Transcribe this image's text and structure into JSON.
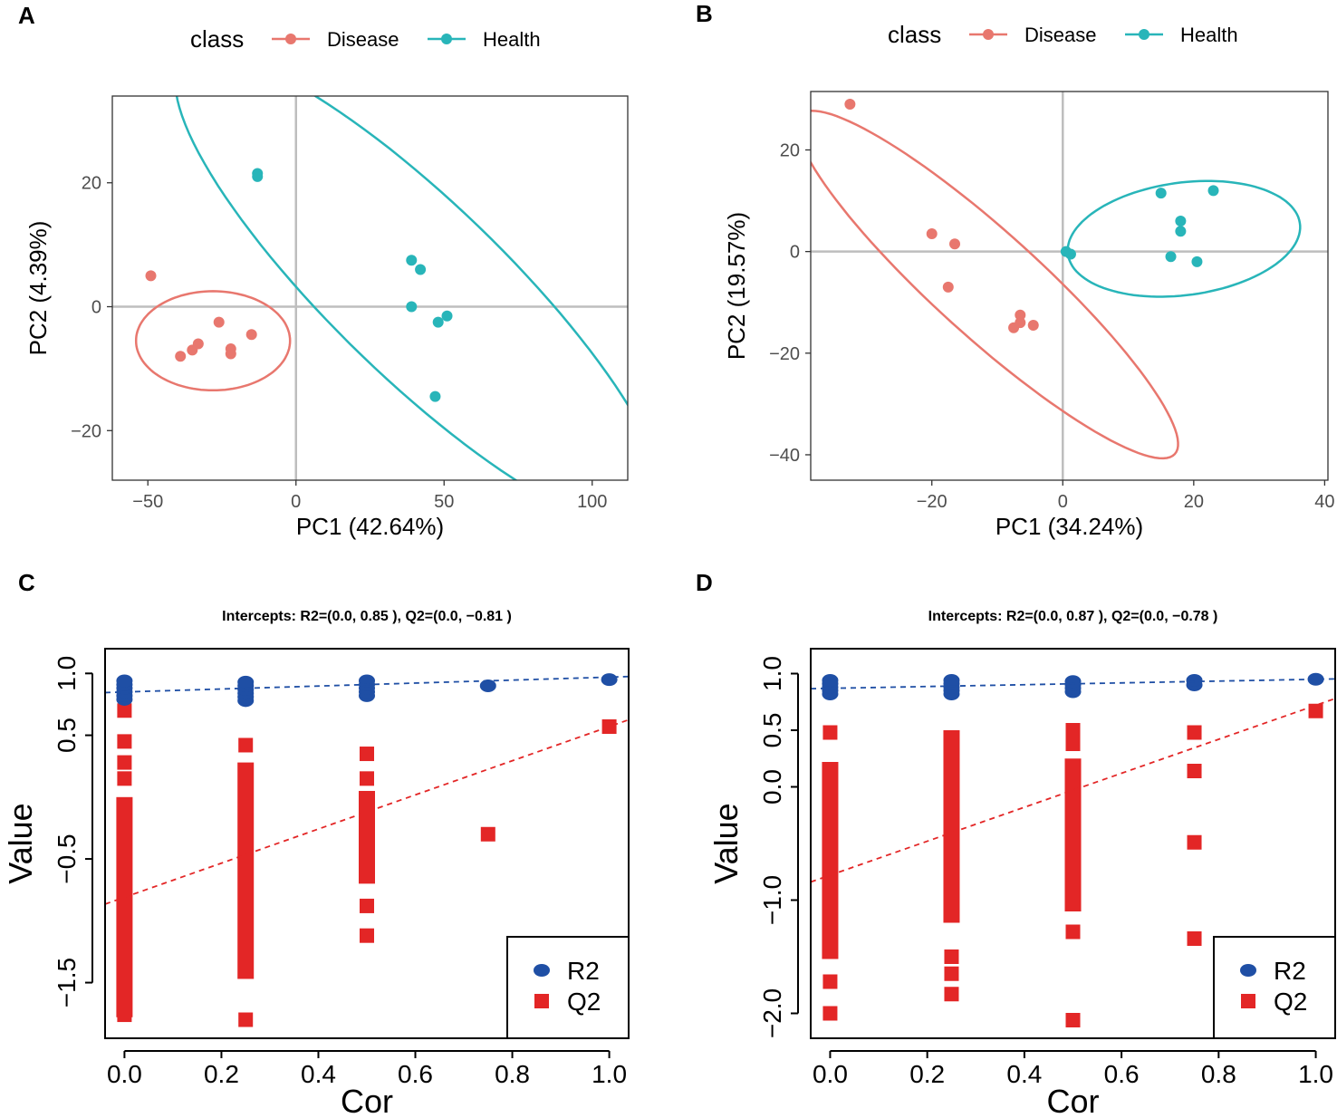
{
  "colors": {
    "disease": "#E8776E",
    "health": "#28B5B9",
    "r2": "#1F4FA5",
    "q2": "#E32626",
    "refline": "#BEBEBE",
    "frame": "#333333"
  },
  "chart_data": [
    {
      "panel": "A",
      "type": "scatter",
      "legend_title": "class",
      "legend_position": "top",
      "xlabel": "PC1 (42.64%)",
      "ylabel": "PC2 (4.39%)",
      "xlim": [
        -62,
        112
      ],
      "ylim": [
        -28,
        34
      ],
      "xticks": [
        -50,
        0,
        50,
        100
      ],
      "yticks": [
        -20,
        0,
        20
      ],
      "xtick_labels": [
        "−50",
        "0",
        "50",
        "100"
      ],
      "ytick_labels": [
        "−20",
        "0",
        "20"
      ],
      "series": [
        {
          "name": "Disease",
          "color_key": "disease",
          "points": [
            [
              -49,
              5
            ],
            [
              -39,
              -8
            ],
            [
              -35,
              -7
            ],
            [
              -33,
              -6
            ],
            [
              -26,
              -2.5
            ],
            [
              -22,
              -6.8
            ],
            [
              -22,
              -7.6
            ],
            [
              -15,
              -4.5
            ]
          ],
          "ellipse": {
            "center": [
              -28,
              -5.5
            ],
            "semi_axes": [
              26,
              8
            ],
            "angle_deg": 0
          }
        },
        {
          "name": "Health",
          "color_key": "health",
          "points": [
            [
              -13,
              21.5
            ],
            [
              -13,
              21
            ],
            [
              39,
              7.5
            ],
            [
              42,
              6
            ],
            [
              39,
              0
            ],
            [
              51,
              -1.5
            ],
            [
              48,
              -2.5
            ],
            [
              47,
              -14.5
            ]
          ],
          "ellipse": {
            "center": [
              42,
              2.5
            ],
            "semi_axes": [
              89.5,
              17.5
            ],
            "angle_deg": -23
          }
        }
      ]
    },
    {
      "panel": "B",
      "type": "scatter",
      "legend_title": "class",
      "legend_position": "top",
      "xlabel": "PC1 (34.24%)",
      "ylabel": "PC2 (19.57%)",
      "xlim": [
        -38.5,
        40.5
      ],
      "ylim": [
        -45,
        31.5
      ],
      "xticks": [
        -20,
        0,
        20,
        40
      ],
      "yticks": [
        -40,
        -20,
        0,
        20
      ],
      "xtick_labels": [
        "−20",
        "0",
        "20",
        "40"
      ],
      "ytick_labels": [
        "−40",
        "−20",
        "0",
        "20"
      ],
      "series": [
        {
          "name": "Disease",
          "color_key": "disease",
          "points": [
            [
              -32.5,
              29
            ],
            [
              -20,
              3.5
            ],
            [
              -16.5,
              1.5
            ],
            [
              -17.5,
              -7
            ],
            [
              -6.5,
              -12.5
            ],
            [
              -6.5,
              -14
            ],
            [
              -7.5,
              -15
            ],
            [
              -4.5,
              -14.5
            ]
          ],
          "ellipse": {
            "center": [
              -11.5,
              -6.5
            ],
            "semi_axes": [
              44,
              9
            ],
            "angle_deg": -50
          }
        },
        {
          "name": "Health",
          "color_key": "health",
          "points": [
            [
              0.5,
              0
            ],
            [
              1.2,
              -0.5
            ],
            [
              15,
              11.5
            ],
            [
              23,
              12
            ],
            [
              18,
              6
            ],
            [
              18,
              4
            ],
            [
              16.5,
              -1
            ],
            [
              20.5,
              -2
            ]
          ],
          "ellipse": {
            "center": [
              18.5,
              2.5
            ],
            "semi_axes": [
              18,
              11
            ],
            "angle_deg": 12
          }
        }
      ]
    },
    {
      "panel": "C",
      "type": "scatter",
      "title": "Intercepts: R2=(0.0, 0.85 ), Q2=(0.0, −0.81 )",
      "xlabel": "Cor",
      "ylabel": "Value",
      "xlim": [
        -0.04,
        1.04
      ],
      "ylim": [
        -1.95,
        1.2
      ],
      "xticks": [
        0.0,
        0.2,
        0.4,
        0.6,
        0.8,
        1.0
      ],
      "yticks": [
        -1.5,
        -0.5,
        0.5,
        1.0
      ],
      "xtick_labels": [
        "0.0",
        "0.2",
        "0.4",
        "0.6",
        "0.8",
        "1.0"
      ],
      "ytick_labels": [
        "−1.5",
        "−0.5",
        "0.5",
        "1.0"
      ],
      "legend": [
        "R2",
        "Q2"
      ],
      "legend_position": "bottom-right",
      "r2_line": {
        "intercept": 0.85,
        "slope": 0.12
      },
      "q2_line": {
        "intercept": -0.81,
        "slope": 1.38
      },
      "r2_points": [
        [
          0,
          0.79
        ],
        [
          0,
          0.82
        ],
        [
          0,
          0.85
        ],
        [
          0,
          0.88
        ],
        [
          0,
          0.91
        ],
        [
          0,
          0.94
        ],
        [
          0.25,
          0.78
        ],
        [
          0.25,
          0.81
        ],
        [
          0.25,
          0.84
        ],
        [
          0.25,
          0.87
        ],
        [
          0.25,
          0.9
        ],
        [
          0.25,
          0.93
        ],
        [
          0.5,
          0.82
        ],
        [
          0.5,
          0.85
        ],
        [
          0.5,
          0.88
        ],
        [
          0.5,
          0.91
        ],
        [
          0.5,
          0.94
        ],
        [
          0.75,
          0.9
        ],
        [
          1.0,
          0.95
        ]
      ],
      "q2_points": [
        [
          0,
          0.7
        ],
        [
          0,
          0.45
        ],
        [
          0,
          0.28
        ],
        [
          0,
          0.15
        ],
        [
          0.25,
          0.42
        ],
        [
          0.5,
          0.35
        ],
        [
          0.5,
          0.15
        ],
        [
          0.5,
          -0.88
        ],
        [
          0.5,
          -1.12
        ],
        [
          0.75,
          -0.3
        ],
        [
          0.25,
          -1.8
        ],
        [
          0,
          -1.76
        ],
        [
          1.0,
          0.57
        ]
      ],
      "q2_bars": [
        [
          0,
          0.0,
          -1.78
        ],
        [
          0.25,
          0.28,
          -1.47
        ],
        [
          0.5,
          0.05,
          -0.7
        ]
      ]
    },
    {
      "panel": "D",
      "type": "scatter",
      "title": "Intercepts: R2=(0.0, 0.87 ), Q2=(0.0, −0.78 )",
      "xlabel": "Cor",
      "ylabel": "Value",
      "xlim": [
        -0.04,
        1.04
      ],
      "ylim": [
        -2.22,
        1.22
      ],
      "xticks": [
        0.0,
        0.2,
        0.4,
        0.6,
        0.8,
        1.0
      ],
      "yticks": [
        -2.0,
        -1.0,
        0.0,
        0.5,
        1.0
      ],
      "xtick_labels": [
        "0.0",
        "0.2",
        "0.4",
        "0.6",
        "0.8",
        "1.0"
      ],
      "ytick_labels": [
        "−2.0",
        "−1.0",
        "0.0",
        "0.5",
        "1.0"
      ],
      "legend": [
        "R2",
        "Q2"
      ],
      "legend_position": "bottom-right",
      "r2_line": {
        "intercept": 0.87,
        "slope": 0.08
      },
      "q2_line": {
        "intercept": -0.78,
        "slope": 1.5
      },
      "r2_points": [
        [
          0,
          0.82
        ],
        [
          0,
          0.85
        ],
        [
          0,
          0.88
        ],
        [
          0,
          0.91
        ],
        [
          0,
          0.94
        ],
        [
          0.25,
          0.82
        ],
        [
          0.25,
          0.85
        ],
        [
          0.25,
          0.88
        ],
        [
          0.25,
          0.91
        ],
        [
          0.25,
          0.94
        ],
        [
          0.5,
          0.84
        ],
        [
          0.5,
          0.87
        ],
        [
          0.5,
          0.9
        ],
        [
          0.5,
          0.93
        ],
        [
          0.75,
          0.9
        ],
        [
          0.75,
          0.94
        ],
        [
          1.0,
          0.95
        ]
      ],
      "q2_points": [
        [
          0,
          0.48
        ],
        [
          0,
          -1.72
        ],
        [
          0,
          -2.0
        ],
        [
          0.25,
          -1.5
        ],
        [
          0.25,
          -1.65
        ],
        [
          0.25,
          -1.83
        ],
        [
          0.5,
          0.5
        ],
        [
          0.5,
          0.38
        ],
        [
          0.5,
          -1.28
        ],
        [
          0.5,
          -2.06
        ],
        [
          0.75,
          0.48
        ],
        [
          0.75,
          0.14
        ],
        [
          0.75,
          -0.49
        ],
        [
          0.75,
          -1.34
        ],
        [
          1.0,
          0.67
        ]
      ],
      "q2_bars": [
        [
          0,
          0.22,
          -1.52
        ],
        [
          0.25,
          0.5,
          -1.2
        ],
        [
          0.5,
          0.25,
          -1.1
        ]
      ]
    }
  ]
}
